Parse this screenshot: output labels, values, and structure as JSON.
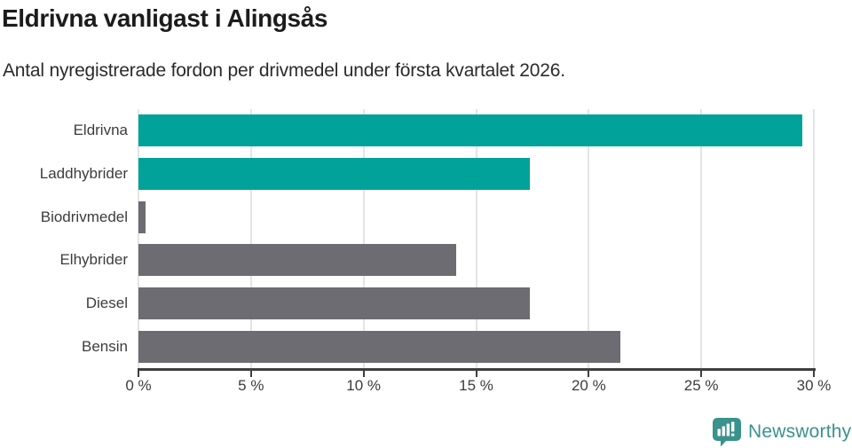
{
  "chart_data": {
    "type": "bar",
    "orientation": "horizontal",
    "title": "Eldrivna vanligast i Alingsås",
    "subtitle": "Antal nyregistrerade fordon per drivmedel under första kvartalet 2026.",
    "categories": [
      "Eldrivna",
      "Laddhybrider",
      "Biodrivmedel",
      "Elhybrider",
      "Diesel",
      "Bensin"
    ],
    "values": [
      29.5,
      17.4,
      0.3,
      14.1,
      17.4,
      21.4
    ],
    "unit": "%",
    "xlabel": "",
    "ylabel": "",
    "xlim": [
      0,
      30
    ],
    "x_ticks": [
      0,
      5,
      10,
      15,
      20,
      25,
      30
    ],
    "x_tick_labels": [
      "0 %",
      "5 %",
      "10 %",
      "15 %",
      "20 %",
      "25 %",
      "30 %"
    ],
    "grid": true,
    "legend": false,
    "bar_colors": [
      "#00a29a",
      "#00a29a",
      "#6c6c72",
      "#6c6c72",
      "#6c6c72",
      "#6c6c72"
    ],
    "colors": {
      "accent": "#00a29a",
      "neutral": "#6c6c72",
      "gridline": "#e4e4e4",
      "axis": "#3f3f3f",
      "text": "#3c3c3c"
    }
  },
  "footer": {
    "brand_label": "Newsworthy",
    "brand_color": "#3a928c",
    "logo_icon": "newsworthy-speech-bubble-bar-chart-icon"
  }
}
